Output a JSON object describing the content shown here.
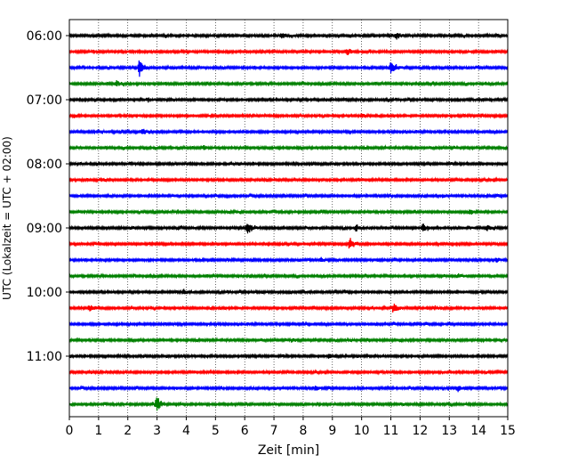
{
  "chart_data": {
    "type": "line",
    "title": "",
    "xlabel": "Zeit  [min]",
    "ylabel": "UTC (Lokalzeit = UTC + 02:00)",
    "xlim": [
      0,
      15
    ],
    "x_ticks": [
      "0",
      "1",
      "2",
      "3",
      "4",
      "5",
      "6",
      "7",
      "8",
      "9",
      "10",
      "11",
      "12",
      "13",
      "14",
      "15"
    ],
    "y_ticks": [
      "06:00",
      "07:00",
      "08:00",
      "09:00",
      "10:00",
      "11:00"
    ],
    "grid": "vertical dotted at each minute",
    "trace_interval_minutes": 15,
    "trace_colors": [
      "#000000",
      "#ff0000",
      "#0000ff",
      "#008000"
    ],
    "series": [
      {
        "start": "06:00",
        "color": "#000000",
        "events": [
          {
            "t": 7.3,
            "a": 0.4
          },
          {
            "t": 11.2,
            "a": 0.5
          }
        ]
      },
      {
        "start": "06:15",
        "color": "#ff0000",
        "events": [
          {
            "t": 9.5,
            "a": 0.6
          }
        ]
      },
      {
        "start": "06:30",
        "color": "#0000ff",
        "events": [
          {
            "t": 2.4,
            "a": 1.2
          },
          {
            "t": 11.0,
            "a": 1.0
          }
        ]
      },
      {
        "start": "06:45",
        "color": "#008000",
        "events": [
          {
            "t": 1.6,
            "a": 0.5
          }
        ]
      },
      {
        "start": "07:00",
        "color": "#000000",
        "events": [
          {
            "t": 2.7,
            "a": 0.3
          }
        ]
      },
      {
        "start": "07:15",
        "color": "#ff0000",
        "events": [
          {
            "t": 10.0,
            "a": 0.3
          }
        ]
      },
      {
        "start": "07:30",
        "color": "#0000ff",
        "events": [
          {
            "t": 2.5,
            "a": 0.4
          }
        ]
      },
      {
        "start": "07:45",
        "color": "#008000",
        "events": [
          {
            "t": 4.6,
            "a": 0.3
          }
        ]
      },
      {
        "start": "08:00",
        "color": "#000000",
        "events": []
      },
      {
        "start": "08:15",
        "color": "#ff0000",
        "events": [
          {
            "t": 1.1,
            "a": 0.3
          }
        ]
      },
      {
        "start": "08:30",
        "color": "#0000ff",
        "events": []
      },
      {
        "start": "08:45",
        "color": "#008000",
        "events": [
          {
            "t": 13.7,
            "a": 0.3
          }
        ]
      },
      {
        "start": "09:00",
        "color": "#000000",
        "events": [
          {
            "t": 6.1,
            "a": 1.0
          },
          {
            "t": 9.8,
            "a": 0.5
          },
          {
            "t": 12.1,
            "a": 0.6
          },
          {
            "t": 14.3,
            "a": 0.4
          }
        ]
      },
      {
        "start": "09:15",
        "color": "#ff0000",
        "events": [
          {
            "t": 9.6,
            "a": 1.0
          }
        ]
      },
      {
        "start": "09:30",
        "color": "#0000ff",
        "events": [
          {
            "t": 8.6,
            "a": 0.3
          },
          {
            "t": 14.6,
            "a": 0.3
          }
        ]
      },
      {
        "start": "09:45",
        "color": "#008000",
        "events": [
          {
            "t": 13.3,
            "a": 0.3
          }
        ]
      },
      {
        "start": "10:00",
        "color": "#000000",
        "events": [
          {
            "t": 3.9,
            "a": 0.35
          }
        ]
      },
      {
        "start": "10:15",
        "color": "#ff0000",
        "events": [
          {
            "t": 0.7,
            "a": 0.5
          },
          {
            "t": 11.1,
            "a": 0.6
          },
          {
            "t": 12.5,
            "a": 0.3
          }
        ]
      },
      {
        "start": "10:30",
        "color": "#0000ff",
        "events": []
      },
      {
        "start": "10:45",
        "color": "#008000",
        "events": [
          {
            "t": 7.6,
            "a": 0.3
          }
        ]
      },
      {
        "start": "11:00",
        "color": "#000000",
        "events": [
          {
            "t": 8.9,
            "a": 0.3
          }
        ]
      },
      {
        "start": "11:15",
        "color": "#ff0000",
        "events": []
      },
      {
        "start": "11:30",
        "color": "#0000ff",
        "events": [
          {
            "t": 8.4,
            "a": 0.3
          },
          {
            "t": 13.3,
            "a": 0.4
          }
        ]
      },
      {
        "start": "11:45",
        "color": "#008000",
        "events": [
          {
            "t": 3.0,
            "a": 1.2
          }
        ]
      }
    ]
  }
}
